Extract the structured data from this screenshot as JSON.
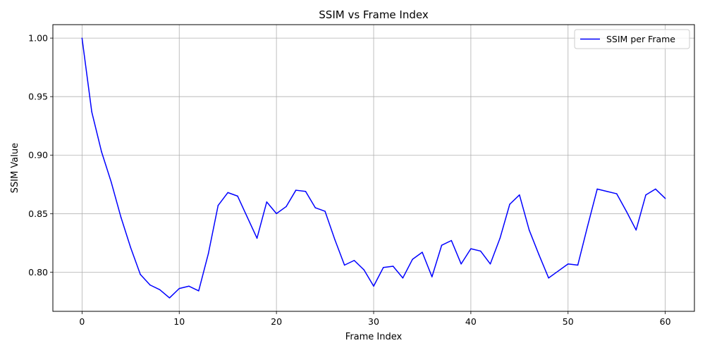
{
  "chart_data": {
    "type": "line",
    "title": "SSIM vs Frame Index",
    "xlabel": "Frame Index",
    "ylabel": "SSIM Value",
    "xlim": [
      -3,
      63
    ],
    "ylim": [
      0.7665,
      1.0115
    ],
    "xticks": [
      0,
      10,
      20,
      30,
      40,
      50,
      60
    ],
    "yticks": [
      0.8,
      0.85,
      0.9,
      0.95,
      1.0
    ],
    "xtick_labels": [
      "0",
      "10",
      "20",
      "30",
      "40",
      "50",
      "60"
    ],
    "ytick_labels": [
      "0.80",
      "0.85",
      "0.90",
      "0.95",
      "1.00"
    ],
    "grid": true,
    "legend_position": "top-right",
    "series": [
      {
        "name": "SSIM per Frame",
        "color": "#0000ff",
        "x": [
          0,
          1,
          2,
          3,
          4,
          5,
          6,
          7,
          8,
          9,
          10,
          11,
          12,
          13,
          14,
          15,
          16,
          17,
          18,
          19,
          20,
          21,
          22,
          23,
          24,
          25,
          26,
          27,
          28,
          29,
          30,
          31,
          32,
          33,
          34,
          35,
          36,
          37,
          38,
          39,
          40,
          41,
          42,
          43,
          44,
          45,
          46,
          47,
          48,
          49,
          50,
          51,
          52,
          53,
          54,
          55,
          56,
          57,
          58,
          59,
          60
        ],
        "values": [
          1.0,
          0.937,
          0.903,
          0.877,
          0.847,
          0.821,
          0.798,
          0.789,
          0.785,
          0.778,
          0.786,
          0.788,
          0.784,
          0.816,
          0.857,
          0.868,
          0.865,
          0.847,
          0.829,
          0.86,
          0.85,
          0.856,
          0.87,
          0.869,
          0.855,
          0.852,
          0.828,
          0.806,
          0.81,
          0.802,
          0.788,
          0.804,
          0.805,
          0.795,
          0.811,
          0.817,
          0.796,
          0.823,
          0.827,
          0.807,
          0.82,
          0.818,
          0.807,
          0.829,
          0.858,
          0.866,
          0.836,
          0.815,
          0.795,
          0.801,
          0.807,
          0.806,
          0.839,
          0.871,
          0.869,
          0.867,
          0.852,
          0.836,
          0.866,
          0.871,
          0.863
        ]
      }
    ]
  }
}
